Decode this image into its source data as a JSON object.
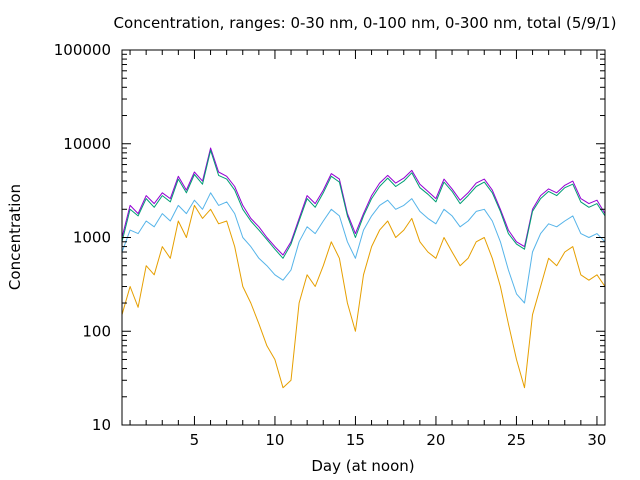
{
  "chart_data": {
    "type": "line",
    "title": "Concentration, ranges: 0-30 nm, 0-100 nm, 0-300 nm, total (5/9/1)",
    "xlabel": "Day (at noon)",
    "ylabel": "Concentration",
    "xlim": [
      0.5,
      30.5
    ],
    "ylim": [
      10,
      100000
    ],
    "yscale": "log",
    "grid": false,
    "legend": "none",
    "x_ticks": [
      5,
      10,
      15,
      20,
      25,
      30
    ],
    "x_minor_ticks": [
      1,
      2,
      3,
      4,
      6,
      7,
      8,
      9,
      11,
      12,
      13,
      14,
      16,
      17,
      18,
      19,
      21,
      22,
      23,
      24,
      26,
      27,
      28,
      29
    ],
    "y_ticks": [
      10,
      100,
      1000,
      10000,
      100000
    ],
    "y_tick_labels": [
      "10",
      "100",
      "1000",
      "10000",
      "100000"
    ],
    "series": [
      {
        "color": "#e69f00",
        "x": [
          0.5,
          1,
          1.5,
          2,
          2.5,
          3,
          3.5,
          4,
          4.5,
          5,
          5.5,
          6,
          6.5,
          7,
          7.5,
          8,
          8.5,
          9,
          9.5,
          10,
          10.5,
          11,
          11.5,
          12,
          12.5,
          13,
          13.5,
          14,
          14.5,
          15,
          15.5,
          16,
          16.5,
          17,
          17.5,
          18,
          18.5,
          19,
          19.5,
          20,
          20.5,
          21,
          21.5,
          22,
          22.5,
          23,
          23.5,
          24,
          24.5,
          25,
          25.5,
          26,
          26.5,
          27,
          27.5,
          28,
          28.5,
          29,
          29.5,
          30,
          30.5
        ],
        "values": [
          150,
          300,
          180,
          500,
          400,
          800,
          600,
          1500,
          1000,
          2200,
          1600,
          2000,
          1400,
          1500,
          800,
          300,
          200,
          120,
          70,
          50,
          25,
          30,
          200,
          400,
          300,
          500,
          900,
          600,
          200,
          100,
          400,
          800,
          1200,
          1500,
          1000,
          1200,
          1600,
          900,
          700,
          600,
          1000,
          700,
          500,
          600,
          900,
          1000,
          600,
          300,
          120,
          50,
          25,
          150,
          300,
          600,
          500,
          700,
          800,
          400,
          350,
          400,
          300
        ]
      },
      {
        "color": "#56b4e9",
        "x": [
          0.5,
          1,
          1.5,
          2,
          2.5,
          3,
          3.5,
          4,
          4.5,
          5,
          5.5,
          6,
          6.5,
          7,
          7.5,
          8,
          8.5,
          9,
          9.5,
          10,
          10.5,
          11,
          11.5,
          12,
          12.5,
          13,
          13.5,
          14,
          14.5,
          15,
          15.5,
          16,
          16.5,
          17,
          17.5,
          18,
          18.5,
          19,
          19.5,
          20,
          20.5,
          21,
          21.5,
          22,
          22.5,
          23,
          23.5,
          24,
          24.5,
          25,
          25.5,
          26,
          26.5,
          27,
          27.5,
          28,
          28.5,
          29,
          29.5,
          30,
          30.5
        ],
        "values": [
          700,
          1200,
          1100,
          1500,
          1300,
          1800,
          1500,
          2200,
          1800,
          2500,
          2000,
          3000,
          2200,
          2400,
          1800,
          1000,
          800,
          600,
          500,
          400,
          350,
          450,
          900,
          1300,
          1100,
          1500,
          2000,
          1700,
          900,
          600,
          1200,
          1700,
          2200,
          2500,
          2000,
          2200,
          2600,
          1900,
          1600,
          1400,
          2000,
          1700,
          1300,
          1500,
          1900,
          2000,
          1500,
          900,
          450,
          250,
          200,
          700,
          1100,
          1400,
          1300,
          1500,
          1700,
          1100,
          1000,
          1100,
          900
        ]
      },
      {
        "color": "#9400d3",
        "x": [
          0.5,
          1,
          1.5,
          2,
          2.5,
          3,
          3.5,
          4,
          4.5,
          5,
          5.5,
          6,
          6.5,
          7,
          7.5,
          8,
          8.5,
          9,
          9.5,
          10,
          10.5,
          11,
          11.5,
          12,
          12.5,
          13,
          13.5,
          14,
          14.5,
          15,
          15.5,
          16,
          16.5,
          17,
          17.5,
          18,
          18.5,
          19,
          19.5,
          20,
          20.5,
          21,
          21.5,
          22,
          22.5,
          23,
          23.5,
          24,
          24.5,
          25,
          25.5,
          26,
          26.5,
          27,
          27.5,
          28,
          28.5,
          29,
          29.5,
          30,
          30.5
        ],
        "values": [
          1000,
          2200,
          1800,
          2800,
          2300,
          3000,
          2600,
          4500,
          3200,
          5000,
          4000,
          9000,
          5000,
          4500,
          3500,
          2200,
          1600,
          1300,
          1000,
          800,
          650,
          900,
          1600,
          2800,
          2300,
          3200,
          4800,
          4200,
          1800,
          1100,
          1800,
          2800,
          3800,
          4600,
          3800,
          4300,
          5200,
          3700,
          3100,
          2600,
          4200,
          3300,
          2500,
          3000,
          3800,
          4200,
          3200,
          2000,
          1200,
          900,
          800,
          2000,
          2800,
          3300,
          3000,
          3600,
          4000,
          2600,
          2300,
          2500,
          1800
        ]
      },
      {
        "color": "#009e73",
        "x": [
          0.5,
          1,
          1.5,
          2,
          2.5,
          3,
          3.5,
          4,
          4.5,
          5,
          5.5,
          6,
          6.5,
          7,
          7.5,
          8,
          8.5,
          9,
          9.5,
          10,
          10.5,
          11,
          11.5,
          12,
          12.5,
          13,
          13.5,
          14,
          14.5,
          15,
          15.5,
          16,
          16.5,
          17,
          17.5,
          18,
          18.5,
          19,
          19.5,
          20,
          20.5,
          21,
          21.5,
          22,
          22.5,
          23,
          23.5,
          24,
          24.5,
          25,
          25.5,
          26,
          26.5,
          27,
          27.5,
          28,
          28.5,
          29,
          29.5,
          30,
          30.5
        ],
        "values": [
          900,
          2000,
          1700,
          2600,
          2100,
          2800,
          2400,
          4200,
          3000,
          4700,
          3700,
          8500,
          4600,
          4200,
          3200,
          2000,
          1500,
          1200,
          950,
          750,
          600,
          850,
          1500,
          2600,
          2100,
          3000,
          4500,
          3900,
          1700,
          1000,
          1700,
          2600,
          3500,
          4300,
          3500,
          4000,
          4900,
          3400,
          2900,
          2400,
          3900,
          3100,
          2300,
          2800,
          3500,
          3900,
          3000,
          1900,
          1100,
          850,
          750,
          1900,
          2600,
          3100,
          2800,
          3400,
          3700,
          2400,
          2100,
          2300,
          1700
        ]
      }
    ]
  }
}
